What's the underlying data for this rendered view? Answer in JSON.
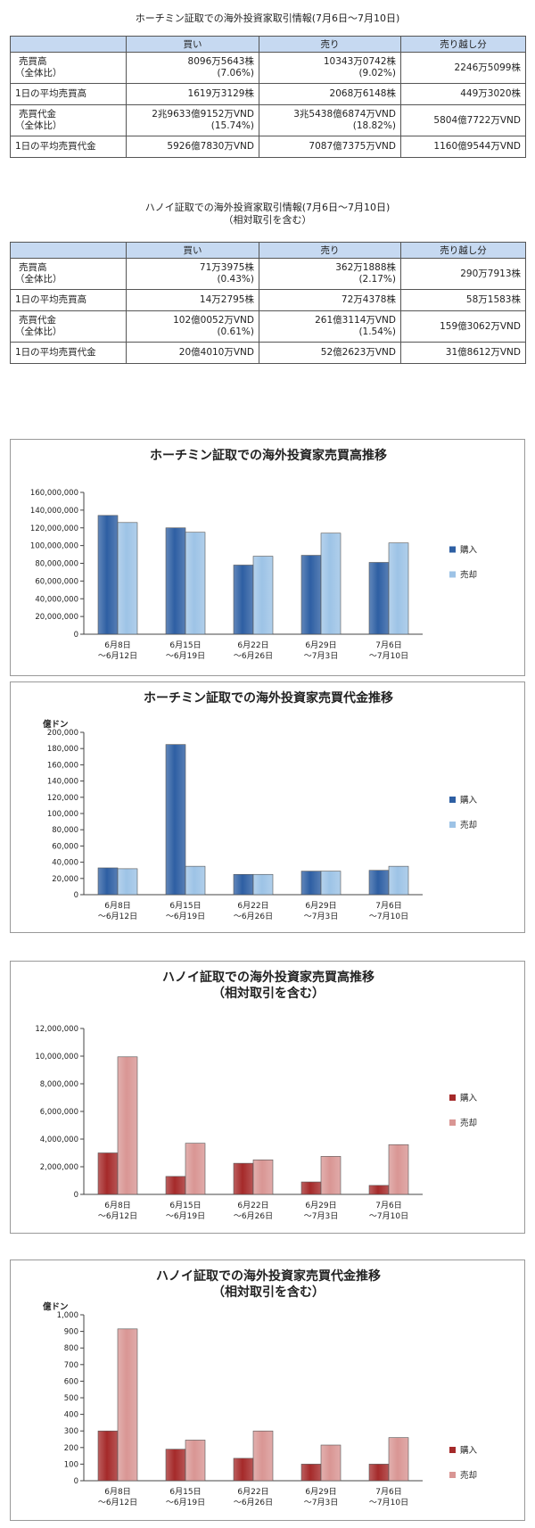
{
  "hcm_table": {
    "title": "ホーチミン証取での海外投資家取引情報(7月6日～7月10日)",
    "headers": [
      "買い",
      "売り",
      "売り越し分"
    ],
    "rows": [
      {
        "label1": "売買高",
        "label2": "（全体比）",
        "buy1": "8096万5643株",
        "buy2": "(7.06%)",
        "sell1": "10343万0742株",
        "sell2": "(9.02%)",
        "net": "2246万5099株"
      },
      {
        "label1": "1日の平均売買高",
        "label2": "",
        "buy1": "1619万3129株",
        "buy2": "",
        "sell1": "2068万6148株",
        "sell2": "",
        "net": "449万3020株"
      },
      {
        "label1": "売買代金",
        "label2": "（全体比）",
        "buy1": "2兆9633億9152万VND",
        "buy2": "(15.74%)",
        "sell1": "3兆5438億6874万VND",
        "sell2": "(18.82%)",
        "net": "5804億7722万VND"
      },
      {
        "label1": "1日の平均売買代金",
        "label2": "",
        "buy1": "5926億7830万VND",
        "buy2": "",
        "sell1": "7087億7375万VND",
        "sell2": "",
        "net": "1160億9544万VND"
      }
    ]
  },
  "hn_table": {
    "title": "ハノイ証取での海外投資家取引情報(7月6日～7月10日)",
    "subtitle": "（相対取引を含む）",
    "headers": [
      "買い",
      "売り",
      "売り越し分"
    ],
    "rows": [
      {
        "label1": "売買高",
        "label2": "（全体比）",
        "buy1": "71万3975株",
        "buy2": "(0.43%)",
        "sell1": "362万1888株",
        "sell2": "(2.17%)",
        "net": "290万7913株"
      },
      {
        "label1": "1日の平均売買高",
        "label2": "",
        "buy1": "14万2795株",
        "buy2": "",
        "sell1": "72万4378株",
        "sell2": "",
        "net": "58万1583株"
      },
      {
        "label1": "売買代金",
        "label2": "（全体比）",
        "buy1": "102億0052万VND",
        "buy2": "(0.61%)",
        "sell1": "261億3114万VND",
        "sell2": "(1.54%)",
        "net": "159億3062万VND"
      },
      {
        "label1": "1日の平均売買代金",
        "label2": "",
        "buy1": "20億4010万VND",
        "buy2": "",
        "sell1": "52億2623万VND",
        "sell2": "",
        "net": "31億8612万VND"
      }
    ]
  },
  "colors": {
    "header_bg": "#c6d9f1",
    "blue_buy": "#2e5fa3",
    "blue_sell": "#9dc3e6",
    "red_buy": "#a52a2a",
    "red_sell": "#d99694"
  },
  "chart_data": [
    {
      "type": "bar",
      "title": [
        "ホーチミン証取での海外投資家売買高推移"
      ],
      "unit_label": "",
      "categories": [
        [
          "6月8日",
          "～6月12日"
        ],
        [
          "6月15日",
          "～6月19日"
        ],
        [
          "6月22日",
          "～6月26日"
        ],
        [
          "6月29日",
          "～7月3日"
        ],
        [
          "7月6日",
          "～7月10日"
        ]
      ],
      "series": [
        {
          "name": "購入",
          "values": [
            134000000,
            120000000,
            78000000,
            89000000,
            81000000
          ]
        },
        {
          "name": "売却",
          "values": [
            126000000,
            115000000,
            88000000,
            114000000,
            103000000
          ]
        }
      ],
      "ylim": [
        0,
        160000000
      ],
      "yticks": [
        0,
        20000000,
        40000000,
        60000000,
        80000000,
        100000000,
        120000000,
        140000000,
        160000000
      ],
      "ytick_labels": [
        "0",
        "20,000,000",
        "40,000,000",
        "60,000,000",
        "80,000,000",
        "100,000,000",
        "120,000,000",
        "140,000,000",
        "160,000,000"
      ],
      "palette": "blue",
      "legend": "right"
    },
    {
      "type": "bar",
      "title": [
        "ホーチミン証取での海外投資家売買代金推移"
      ],
      "unit_label": "億ドン",
      "categories": [
        [
          "6月8日",
          "～6月12日"
        ],
        [
          "6月15日",
          "～6月19日"
        ],
        [
          "6月22日",
          "～6月26日"
        ],
        [
          "6月29日",
          "～7月3日"
        ],
        [
          "7月6日",
          "～7月10日"
        ]
      ],
      "series": [
        {
          "name": "購入",
          "values": [
            33000,
            185000,
            25000,
            29000,
            30000
          ]
        },
        {
          "name": "売却",
          "values": [
            32000,
            35000,
            25000,
            29000,
            35000
          ]
        }
      ],
      "ylim": [
        0,
        200000
      ],
      "yticks": [
        0,
        20000,
        40000,
        60000,
        80000,
        100000,
        120000,
        140000,
        160000,
        180000,
        200000
      ],
      "ytick_labels": [
        "0",
        "20,000",
        "40,000",
        "60,000",
        "80,000",
        "100,000",
        "120,000",
        "140,000",
        "160,000",
        "180,000",
        "200,000"
      ],
      "palette": "blue",
      "legend": "right"
    },
    {
      "type": "bar",
      "title": [
        "ハノイ証取での海外投資家売買高推移",
        "（相対取引を含む）"
      ],
      "unit_label": "",
      "categories": [
        [
          "6月8日",
          "～6月12日"
        ],
        [
          "6月15日",
          "～6月19日"
        ],
        [
          "6月22日",
          "～6月26日"
        ],
        [
          "6月29日",
          "～7月3日"
        ],
        [
          "7月6日",
          "～7月10日"
        ]
      ],
      "series": [
        {
          "name": "購入",
          "values": [
            3000000,
            1300000,
            2250000,
            900000,
            650000
          ]
        },
        {
          "name": "売却",
          "values": [
            9950000,
            3700000,
            2500000,
            2750000,
            3600000
          ]
        }
      ],
      "ylim": [
        0,
        12000000
      ],
      "yticks": [
        0,
        2000000,
        4000000,
        6000000,
        8000000,
        10000000,
        12000000
      ],
      "ytick_labels": [
        "0",
        "2,000,000",
        "4,000,000",
        "6,000,000",
        "8,000,000",
        "10,000,000",
        "12,000,000"
      ],
      "palette": "red",
      "legend": "right"
    },
    {
      "type": "bar",
      "title": [
        "ハノイ証取での海外投資家売買代金推移",
        "（相対取引を含む）"
      ],
      "unit_label": "億ドン",
      "categories": [
        [
          "6月8日",
          "～6月12日"
        ],
        [
          "6月15日",
          "～6月19日"
        ],
        [
          "6月22日",
          "～6月26日"
        ],
        [
          "6月29日",
          "～7月3日"
        ],
        [
          "7月6日",
          "～7月10日"
        ]
      ],
      "series": [
        {
          "name": "購入",
          "values": [
            300,
            190,
            135,
            100,
            100
          ]
        },
        {
          "name": "売却",
          "values": [
            915,
            245,
            300,
            215,
            260
          ]
        }
      ],
      "ylim": [
        0,
        1000
      ],
      "yticks": [
        0,
        100,
        200,
        300,
        400,
        500,
        600,
        700,
        800,
        900,
        1000
      ],
      "ytick_labels": [
        "0",
        "100",
        "200",
        "300",
        "400",
        "500",
        "600",
        "700",
        "800",
        "900",
        "1,000"
      ],
      "palette": "red",
      "legend": "right"
    }
  ]
}
